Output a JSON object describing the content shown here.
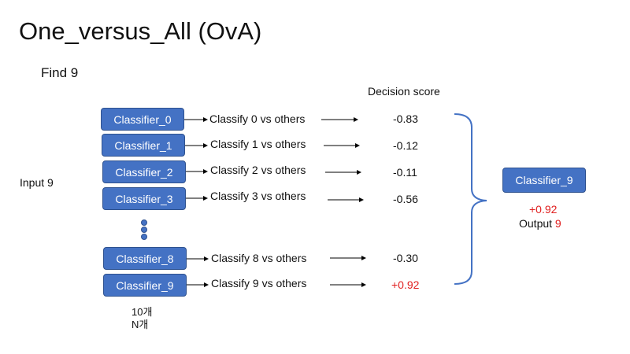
{
  "title": "One_versus_All (OvA)",
  "find_label": "Find 9",
  "input_label": "Input 9",
  "score_header": "Decision score",
  "rows": [
    {
      "classifier": "Classifier_0",
      "task": "Classify 0 vs others",
      "score": "-0.83"
    },
    {
      "classifier": "Classifier_1",
      "task": "Classify 1 vs others",
      "score": "-0.12"
    },
    {
      "classifier": "Classifier_2",
      "task": "Classify 2 vs others",
      "score": "-0.11"
    },
    {
      "classifier": "Classifier_3",
      "task": "Classify 3 vs others",
      "score": "-0.56"
    },
    {
      "classifier": "Classifier_8",
      "task": "Classify 8 vs others",
      "score": "-0.30"
    },
    {
      "classifier": "Classifier_9",
      "task": "Classify 9 vs others",
      "score": "+0.92"
    }
  ],
  "count_labels": {
    "line1": "10개",
    "line2": "N개"
  },
  "output": {
    "classifier": "Classifier_9",
    "score": "+0.92",
    "label": "Output",
    "value": "9"
  },
  "colors": {
    "box": "#4472C4",
    "highlight": "#e02020",
    "brace": "#4472C4"
  }
}
